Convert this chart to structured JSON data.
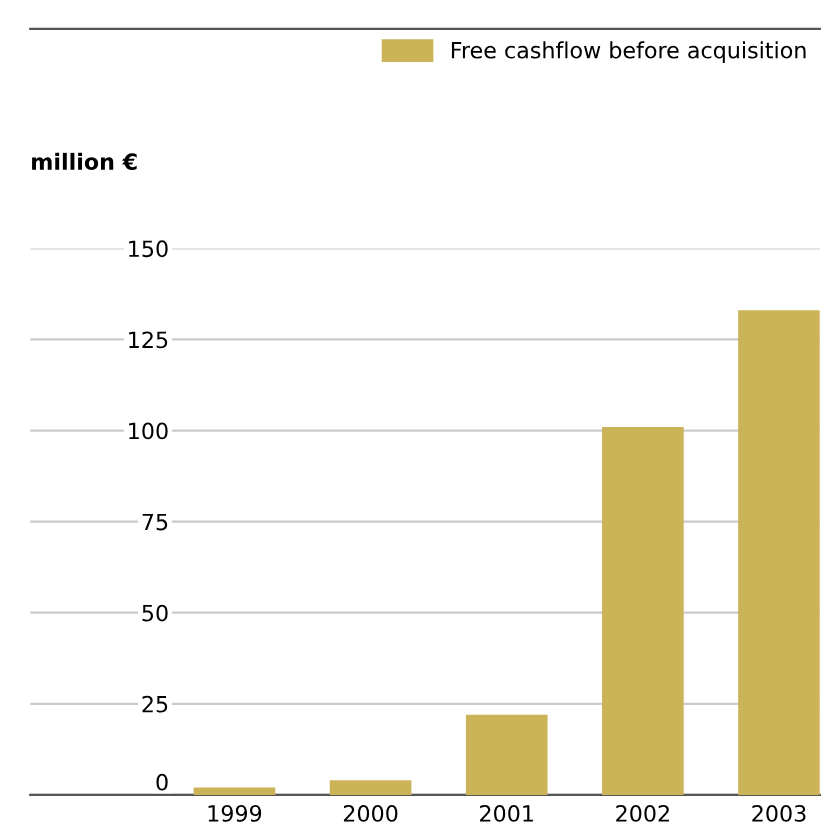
{
  "chart_data": {
    "type": "bar",
    "ylabel": "million €",
    "categories": [
      "1999",
      "2000",
      "2001",
      "2002",
      "2003"
    ],
    "series": [
      {
        "name": "Free cashflow before acquisition",
        "color": "#cbb358",
        "values": [
          2,
          4,
          22,
          101,
          133
        ]
      }
    ],
    "ylim": [
      0,
      150
    ],
    "yticks": [
      0,
      25,
      50,
      75,
      100,
      125,
      150
    ],
    "grid": "y",
    "legend": "top right"
  }
}
